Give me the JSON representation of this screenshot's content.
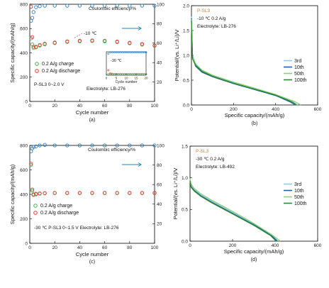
{
  "chart_data": [
    {
      "type": "scatter",
      "panel": "(a)",
      "xlabel": "Cycle number",
      "ylabel": "Specific capacity/(mAh/g)",
      "y2label": "Coulombic efficiency/%",
      "xlim": [
        0,
        100
      ],
      "ylim": [
        0,
        800
      ],
      "y2lim": [
        0,
        100
      ],
      "xticks": [
        "0",
        "20",
        "40",
        "60",
        "80",
        "100"
      ],
      "yticks": [
        "0",
        "200",
        "400",
        "600",
        "800"
      ],
      "y2ticks": [
        "20",
        "40",
        "60",
        "80",
        "100"
      ],
      "annotations": {
        "ce": "Coulombic efficiency/%",
        "temp": "-10 ℃",
        "volt": "P-SL3 0~2.0 V",
        "electrolyte": "Electrolyte: LB-276"
      },
      "legend": [
        {
          "name": "0.2 A/g charge",
          "color": "#4caf50"
        },
        {
          "name": "0.2 A/g discharge",
          "color": "#e53935"
        }
      ],
      "series": [
        {
          "name": "Coulombic efficiency",
          "axis": "right",
          "color": "#2f7fc1",
          "x": [
            1,
            2,
            3,
            5,
            8,
            12,
            20,
            30,
            40,
            50,
            60,
            70,
            80,
            90,
            100
          ],
          "y": [
            83,
            86,
            92,
            97,
            98,
            98.5,
            98.5,
            98.5,
            98.5,
            98.5,
            98.5,
            98.5,
            98.5,
            98.5,
            98.5
          ]
        },
        {
          "name": "0.2 A/g charge",
          "color": "#4caf50",
          "x": [
            1,
            2,
            3,
            5,
            8,
            12,
            20,
            30,
            40,
            50,
            60,
            70,
            80,
            90,
            100
          ],
          "y": [
            520,
            470,
            440,
            445,
            460,
            470,
            480,
            490,
            495,
            497,
            495,
            488,
            478,
            468,
            458
          ]
        },
        {
          "name": "0.2 A/g discharge",
          "color": "#e53935",
          "x": [
            1,
            2,
            3,
            5,
            8,
            12,
            20,
            30,
            40,
            50,
            60,
            70,
            80,
            90,
            100
          ],
          "y": [
            780,
            530,
            450,
            450,
            465,
            475,
            485,
            495,
            500,
            502,
            500,
            493,
            483,
            473,
            462
          ]
        }
      ],
      "inset": {
        "xlabel": "Cycle number",
        "label": "-30 ℃",
        "xticks": [
          "0",
          "5",
          "10",
          "15",
          "20"
        ],
        "x": [
          1,
          2,
          3,
          4,
          5,
          6,
          7,
          8,
          9,
          10,
          11,
          12,
          13,
          14,
          15,
          16,
          17,
          18,
          19,
          20
        ],
        "charge": [
          40,
          35,
          32,
          31,
          30,
          30,
          30,
          30,
          30,
          30,
          30,
          30,
          30,
          30,
          30,
          30,
          30,
          30,
          30,
          30
        ],
        "discharge": [
          170,
          60,
          45,
          40,
          38,
          36,
          35,
          35,
          35,
          35,
          35,
          35,
          35,
          35,
          35,
          35,
          35,
          35,
          35,
          35
        ],
        "ce": [
          92,
          98,
          98,
          98,
          98,
          98,
          98,
          98,
          98,
          98,
          98,
          98,
          98,
          98,
          98,
          98,
          98,
          98,
          98,
          98
        ]
      }
    },
    {
      "type": "line",
      "panel": "(b)",
      "xlabel": "Specific capacity/(mAh/g)",
      "ylabel": "Potential/(vs. Li⁺/Li)/V",
      "xlim": [
        0,
        600
      ],
      "ylim": [
        0,
        2.0
      ],
      "xticks": [
        "0",
        "200",
        "400",
        "600"
      ],
      "yticks": [
        "0.0",
        "0.5",
        "1.0",
        "1.5",
        "2.0"
      ],
      "annotations": {
        "material": "P-SL3",
        "cond": "-10 ℃ 0.2 A/g",
        "electrolyte": "Electrolyte: LB-276"
      },
      "series": [
        {
          "name": "3rd",
          "color": "#8ecae6",
          "x": [
            0,
            5,
            20,
            50,
            100,
            200,
            300,
            400,
            480,
            505
          ],
          "y": [
            1.78,
            1.0,
            0.83,
            0.7,
            0.6,
            0.45,
            0.33,
            0.2,
            0.07,
            0.0
          ]
        },
        {
          "name": "10th",
          "color": "#1f5fa8",
          "x": [
            0,
            5,
            20,
            50,
            100,
            200,
            300,
            400,
            470,
            495
          ],
          "y": [
            1.75,
            0.95,
            0.78,
            0.66,
            0.57,
            0.43,
            0.31,
            0.19,
            0.06,
            0.0
          ]
        },
        {
          "name": "50th",
          "color": "#8bd17c",
          "x": [
            0,
            5,
            20,
            50,
            100,
            200,
            300,
            400,
            490,
            520
          ],
          "y": [
            1.72,
            0.97,
            0.82,
            0.7,
            0.6,
            0.46,
            0.34,
            0.21,
            0.07,
            0.0
          ]
        },
        {
          "name": "100th",
          "color": "#2e8b2e",
          "x": [
            0,
            5,
            20,
            50,
            100,
            200,
            300,
            400,
            475,
            500
          ],
          "y": [
            1.7,
            0.93,
            0.8,
            0.68,
            0.58,
            0.44,
            0.32,
            0.2,
            0.07,
            0.0
          ]
        }
      ]
    },
    {
      "type": "scatter",
      "panel": "(c)",
      "xlabel": "Cycle number",
      "ylabel": "Specific capacity/(mAh/g)",
      "y2label": "Coulombic efficiency/%",
      "xlim": [
        0,
        100
      ],
      "ylim": [
        0,
        800
      ],
      "y2lim": [
        0,
        100
      ],
      "xticks": [
        "0",
        "20",
        "40",
        "60",
        "80",
        "100"
      ],
      "yticks": [
        "0",
        "200",
        "400",
        "600",
        "800"
      ],
      "y2ticks": [
        "20",
        "40",
        "60",
        "80",
        "100"
      ],
      "annotations": {
        "ce": "Coulombic efficiency/%",
        "cond": "-30 ℃ P-SL3 0~1.5 V Electrolyte: LB-276"
      },
      "legend": [
        {
          "name": "0.2 A/g charge",
          "color": "#4caf50"
        },
        {
          "name": "0.2 A/g discharge",
          "color": "#e53935"
        }
      ],
      "series": [
        {
          "name": "Coulombic efficiency",
          "axis": "right",
          "color": "#2f7fc1",
          "x": [
            1,
            2,
            3,
            5,
            8,
            12,
            20,
            30,
            40,
            50,
            60,
            70,
            80,
            90,
            100
          ],
          "y": [
            94,
            97,
            98.5,
            99,
            100,
            100.5,
            100,
            100,
            100,
            100,
            100,
            100,
            100,
            100,
            100
          ]
        },
        {
          "name": "0.2 A/g charge",
          "color": "#4caf50",
          "x": [
            1,
            2,
            3,
            5,
            8,
            12,
            20,
            30,
            40,
            50,
            60,
            70,
            80,
            90,
            100
          ],
          "y": [
            640,
            430,
            395,
            400,
            405,
            408,
            410,
            410,
            410,
            410,
            410,
            410,
            410,
            410,
            410
          ]
        },
        {
          "name": "0.2 A/g discharge",
          "color": "#e53935",
          "x": [
            1,
            2,
            3,
            5,
            8,
            12,
            20,
            30,
            40,
            50,
            60,
            70,
            80,
            90,
            100
          ],
          "y": [
            650,
            440,
            400,
            405,
            408,
            410,
            412,
            412,
            412,
            412,
            412,
            412,
            412,
            412,
            412
          ]
        }
      ]
    },
    {
      "type": "line",
      "panel": "(d)",
      "xlabel": "Specific capacity/(mAh/g)",
      "ylabel": "Potential/(vs. Li⁺/Li)/V",
      "xlim": [
        0,
        600
      ],
      "ylim": [
        0,
        1.5
      ],
      "xticks": [
        "0",
        "200",
        "400",
        "600"
      ],
      "yticks": [
        "0.0",
        "0.5",
        "1.0",
        "1.5"
      ],
      "annotations": {
        "material": "P-SL3",
        "cond": "-30 ℃ 0.2 A/g",
        "electrolyte": "Electrolyte: LB-492"
      },
      "series": [
        {
          "name": "3rd",
          "color": "#8ecae6",
          "x": [
            0,
            5,
            20,
            50,
            100,
            200,
            300,
            380,
            415
          ],
          "y": [
            0.97,
            0.88,
            0.82,
            0.74,
            0.64,
            0.46,
            0.27,
            0.1,
            0.0
          ]
        },
        {
          "name": "10th",
          "color": "#1f5fa8",
          "x": [
            0,
            5,
            20,
            50,
            100,
            200,
            300,
            380,
            410
          ],
          "y": [
            0.96,
            0.86,
            0.8,
            0.72,
            0.62,
            0.44,
            0.26,
            0.1,
            0.0
          ]
        },
        {
          "name": "50th",
          "color": "#8bd17c",
          "x": [
            0,
            5,
            20,
            50,
            100,
            200,
            300,
            385,
            425
          ],
          "y": [
            0.99,
            0.9,
            0.83,
            0.75,
            0.65,
            0.47,
            0.28,
            0.1,
            0.0
          ]
        },
        {
          "name": "100th",
          "color": "#2e8b2e",
          "x": [
            0,
            5,
            20,
            50,
            100,
            200,
            300,
            378,
            405
          ],
          "y": [
            0.95,
            0.85,
            0.79,
            0.71,
            0.61,
            0.43,
            0.25,
            0.09,
            0.0
          ]
        }
      ]
    }
  ]
}
